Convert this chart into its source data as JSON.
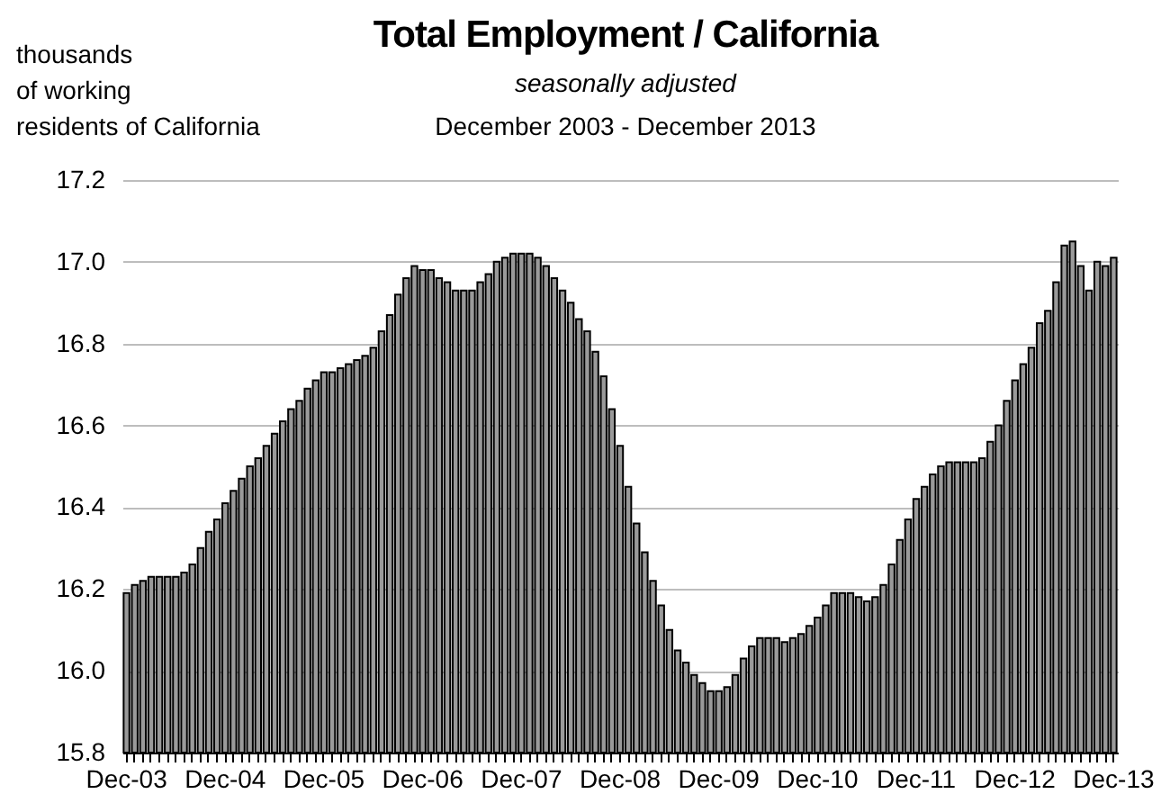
{
  "chart_data": {
    "type": "bar",
    "title": "Total Employment / California",
    "subtitle": "seasonally adjusted",
    "annotations": [
      "December 2003 - December 2013"
    ],
    "ylabel": "thousands\nof working\nresidents of California",
    "categories": [
      "Dec-03",
      null,
      null,
      null,
      null,
      null,
      null,
      null,
      null,
      null,
      null,
      null,
      "Dec-04",
      null,
      null,
      null,
      null,
      null,
      null,
      null,
      null,
      null,
      null,
      null,
      "Dec-05",
      null,
      null,
      null,
      null,
      null,
      null,
      null,
      null,
      null,
      null,
      null,
      "Dec-06",
      null,
      null,
      null,
      null,
      null,
      null,
      null,
      null,
      null,
      null,
      null,
      "Dec-07",
      null,
      null,
      null,
      null,
      null,
      null,
      null,
      null,
      null,
      null,
      null,
      "Dec-08",
      null,
      null,
      null,
      null,
      null,
      null,
      null,
      null,
      null,
      null,
      null,
      "Dec-09",
      null,
      null,
      null,
      null,
      null,
      null,
      null,
      null,
      null,
      null,
      null,
      "Dec-10",
      null,
      null,
      null,
      null,
      null,
      null,
      null,
      null,
      null,
      null,
      null,
      "Dec-11",
      null,
      null,
      null,
      null,
      null,
      null,
      null,
      null,
      null,
      null,
      null,
      "Dec-12",
      null,
      null,
      null,
      null,
      null,
      null,
      null,
      null,
      null,
      null,
      null,
      "Dec-13"
    ],
    "values": [
      16.19,
      16.21,
      16.22,
      16.23,
      16.23,
      16.23,
      16.23,
      16.24,
      16.26,
      16.3,
      16.34,
      16.37,
      16.41,
      16.44,
      16.47,
      16.5,
      16.52,
      16.55,
      16.58,
      16.61,
      16.64,
      16.66,
      16.69,
      16.71,
      16.73,
      16.73,
      16.74,
      16.75,
      16.76,
      16.77,
      16.79,
      16.83,
      16.87,
      16.92,
      16.96,
      16.99,
      16.98,
      16.98,
      16.96,
      16.95,
      16.93,
      16.93,
      16.93,
      16.95,
      16.97,
      17.0,
      17.01,
      17.02,
      17.02,
      17.02,
      17.01,
      16.99,
      16.96,
      16.93,
      16.9,
      16.86,
      16.83,
      16.78,
      16.72,
      16.64,
      16.55,
      16.45,
      16.36,
      16.29,
      16.22,
      16.16,
      16.1,
      16.05,
      16.02,
      15.99,
      15.97,
      15.95,
      15.95,
      15.96,
      15.99,
      16.03,
      16.06,
      16.08,
      16.08,
      16.08,
      16.07,
      16.08,
      16.09,
      16.11,
      16.13,
      16.16,
      16.19,
      16.19,
      16.19,
      16.18,
      16.17,
      16.18,
      16.21,
      16.26,
      16.32,
      16.37,
      16.42,
      16.45,
      16.48,
      16.5,
      16.51,
      16.51,
      16.51,
      16.51,
      16.52,
      16.56,
      16.6,
      16.66,
      16.71,
      16.75,
      16.79,
      16.85,
      16.88,
      16.95,
      17.04,
      17.05,
      16.99,
      16.93,
      17.0,
      16.99,
      17.01
    ],
    "color": "#9a9a9a",
    "ylim": [
      15.8,
      17.2
    ],
    "yticks": [
      {
        "value": 15.8,
        "label": "15.8"
      },
      {
        "value": 16,
        "label": "16.0"
      },
      {
        "value": 16.2,
        "label": "16.2"
      },
      {
        "value": 16.4,
        "label": "16.4"
      },
      {
        "value": 16.6,
        "label": "16.6"
      },
      {
        "value": 16.8,
        "label": "16.8"
      },
      {
        "value": 17,
        "label": "17.0"
      },
      {
        "value": 17.2,
        "label": "17.2"
      }
    ],
    "grid": "y"
  }
}
